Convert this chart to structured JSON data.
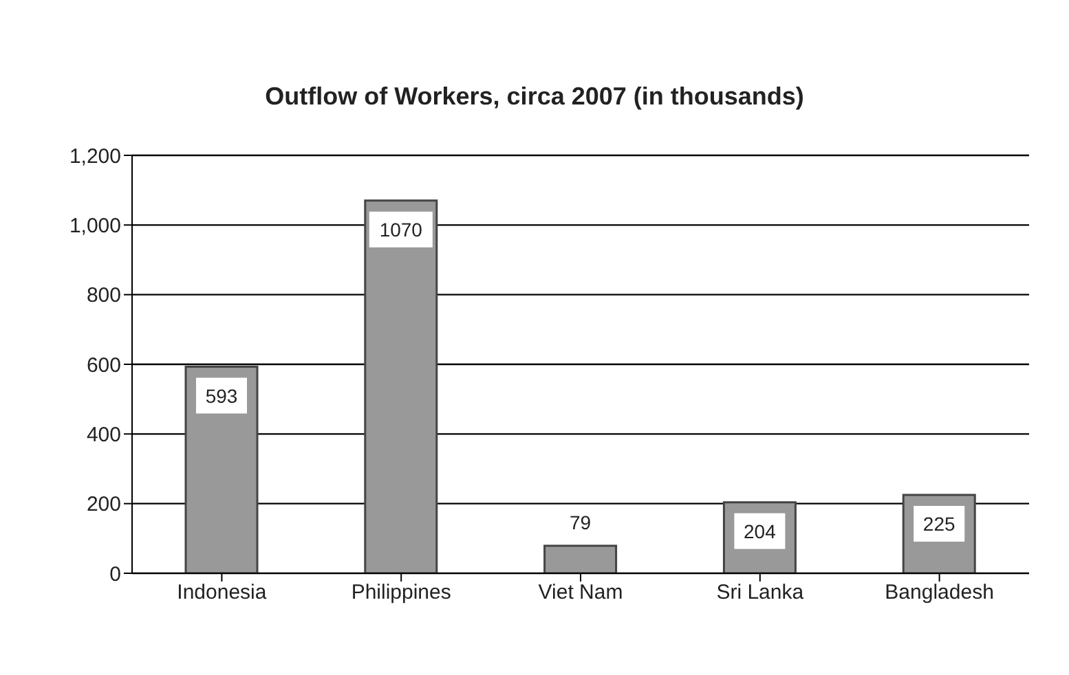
{
  "chart_data": {
    "type": "bar",
    "title": "Outflow of Workers, circa 2007 (in thousands)",
    "categories": [
      "Indonesia",
      "Philippines",
      "Viet Nam",
      "Sri Lanka",
      "Bangladesh"
    ],
    "values": [
      593,
      1070,
      79,
      204,
      225
    ],
    "color": "#999999",
    "ylim": [
      0,
      1200
    ],
    "yticks": [
      0,
      200,
      400,
      600,
      800,
      {
        "value": 1000,
        "label": "1,000"
      },
      {
        "value": 1200,
        "label": "1,200"
      }
    ],
    "grid": "y",
    "data_labels": true,
    "legend": false
  }
}
